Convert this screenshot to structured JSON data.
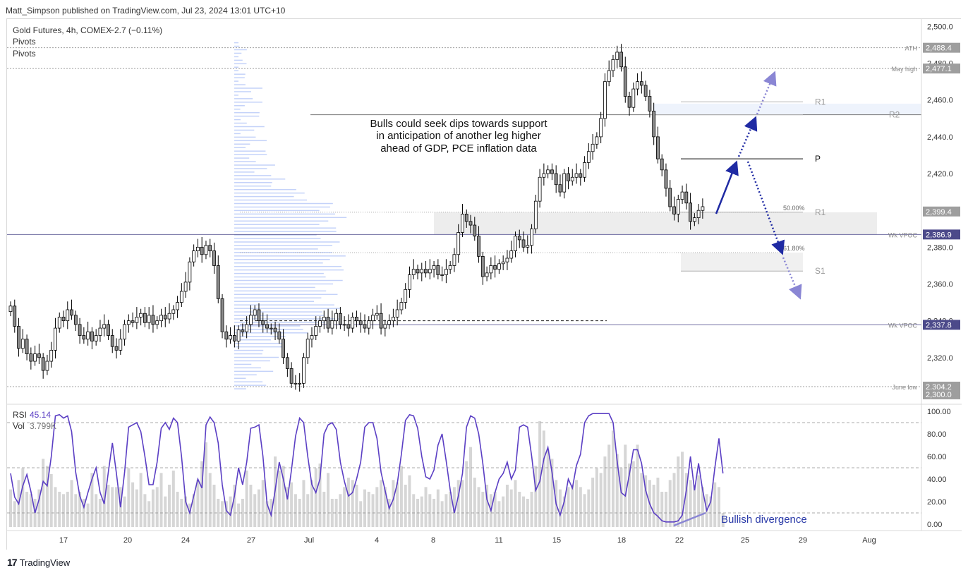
{
  "header": {
    "publisher": "Matt_Simpson published on TradingView.com, Jul 23, 2024 13:01 UTC+10"
  },
  "legend": {
    "symbol": "Gold Futures, 4h, COMEX",
    "change": "−2.7 (−0.11%)",
    "ind1": "Pivots",
    "ind2": "Pivots"
  },
  "annotation": {
    "line1": "Bulls could seek dips towards support",
    "line2": "in anticipation of another leg higher",
    "line3": "ahead of GDP, PCE inflation data"
  },
  "divergence_label": "Bullish divergence",
  "rsi_legend": {
    "name": "RSI",
    "value": "45.14",
    "vol_name": "Vol",
    "vol_value": "3.799K"
  },
  "footer": {
    "brand": "TradingView"
  },
  "colors": {
    "bull": "#ffffff",
    "bear": "#8c8c8c",
    "candle_border": "#000000",
    "profile": "#6c8ef0",
    "rsi": "#5b3fc4",
    "accent": "#1f2aa3",
    "pivot_gray": "#b0b0b0",
    "wkvpoc": "#4c4a8a"
  },
  "chart_data": [
    {
      "type": "candlestick",
      "title": "Gold Futures, 4h, COMEX",
      "y_axis_ticks": [
        2500,
        2480,
        2460,
        2440,
        2420,
        2400,
        2380,
        2360,
        2340,
        2320,
        2300
      ],
      "ylim": [
        2295,
        2504
      ],
      "x_tick_labels": [
        "17",
        "20",
        "24",
        "27",
        "Jul",
        "4",
        "8",
        "11",
        "15",
        "18",
        "22",
        "25",
        "29",
        "Aug"
      ],
      "price_labels": [
        {
          "value": "2,488.4",
          "price": 2488.4,
          "name": "ATH"
        },
        {
          "value": "2,477.1",
          "price": 2477.1,
          "name": "May high"
        },
        {
          "value": "2,399.4",
          "price": 2399.4,
          "name": ""
        },
        {
          "value": "2,386.9",
          "price": 2386.9,
          "name": "Wk VPOC"
        },
        {
          "value": "2,337.8",
          "price": 2337.8,
          "name": "Wk VPOC"
        },
        {
          "value": "2,304.2",
          "price": 2304.2,
          "name": "June low"
        },
        {
          "value": "2,300.0",
          "price": 2300.0,
          "name": ""
        }
      ],
      "pivot_levels": [
        {
          "label": "R1",
          "price": 2459
        },
        {
          "label": "R2",
          "price": 2452
        },
        {
          "label": "P",
          "price": 2428
        },
        {
          "label": "R1",
          "price": 2399
        },
        {
          "label": "S1",
          "price": 2367
        }
      ],
      "fib_levels": [
        {
          "label": "50.00%",
          "price": 2399
        },
        {
          "label": "61.80%",
          "price": 2377
        }
      ],
      "closes": [
        2348,
        2337,
        2325,
        2330,
        2322,
        2318,
        2322,
        2320,
        2313,
        2318,
        2324,
        2336,
        2342,
        2340,
        2346,
        2343,
        2338,
        2332,
        2330,
        2334,
        2329,
        2332,
        2336,
        2338,
        2332,
        2326,
        2324,
        2330,
        2338,
        2340,
        2339,
        2342,
        2344,
        2339,
        2343,
        2338,
        2340,
        2343,
        2341,
        2344,
        2346,
        2350,
        2356,
        2361,
        2372,
        2378,
        2380,
        2376,
        2381,
        2378,
        2370,
        2352,
        2334,
        2330,
        2332,
        2329,
        2335,
        2334,
        2338,
        2343,
        2346,
        2340,
        2338,
        2336,
        2336,
        2334,
        2330,
        2320,
        2314,
        2306,
        2306,
        2306,
        2320,
        2330,
        2332,
        2337,
        2340,
        2342,
        2336,
        2340,
        2344,
        2338,
        2338,
        2336,
        2342,
        2340,
        2338,
        2336,
        2340,
        2343,
        2344,
        2336,
        2338,
        2340,
        2342,
        2346,
        2350,
        2357,
        2365,
        2368,
        2366,
        2368,
        2366,
        2368,
        2370,
        2365,
        2365,
        2368,
        2370,
        2376,
        2388,
        2398,
        2394,
        2392,
        2386,
        2375,
        2364,
        2366,
        2370,
        2368,
        2371,
        2372,
        2374,
        2378,
        2386,
        2384,
        2380,
        2381,
        2390,
        2405,
        2418,
        2420,
        2422,
        2420,
        2414,
        2410,
        2420,
        2416,
        2418,
        2420,
        2418,
        2426,
        2432,
        2436,
        2440,
        2450,
        2470,
        2476,
        2482,
        2486,
        2478,
        2462,
        2456,
        2466,
        2470,
        2468,
        2462,
        2454,
        2440,
        2428,
        2422,
        2412,
        2402,
        2398,
        2406,
        2410,
        2404,
        2394,
        2396,
        2400,
        2402
      ]
    },
    {
      "type": "line",
      "name": "RSI",
      "series": [
        {
          "name": "RSI",
          "values": [
            45,
            24,
            18,
            34,
            44,
            29,
            10,
            22,
            38,
            34,
            60,
            96,
            97,
            94,
            96,
            82,
            46,
            25,
            15,
            28,
            40,
            50,
            28,
            18,
            46,
            72,
            45,
            15,
            46,
            86,
            88,
            90,
            82,
            60,
            35,
            35,
            55,
            85,
            90,
            84,
            94,
            90,
            60,
            20,
            10,
            25,
            40,
            32,
            88,
            95,
            90,
            72,
            35,
            12,
            8,
            25,
            50,
            35,
            55,
            85,
            86,
            88,
            60,
            18,
            8,
            30,
            55,
            40,
            22,
            48,
            78,
            94,
            90,
            60,
            35,
            28,
            40,
            80,
            88,
            90,
            84,
            55,
            38,
            25,
            28,
            40,
            55,
            86,
            90,
            90,
            76,
            46,
            30,
            14,
            22,
            36,
            62,
            92,
            97,
            96,
            85,
            60,
            42,
            40,
            48,
            70,
            80,
            56,
            30,
            10,
            25,
            45,
            86,
            96,
            94,
            80,
            54,
            22,
            12,
            28,
            40,
            45,
            55,
            40,
            48,
            86,
            88,
            86,
            60,
            30,
            38,
            58,
            68,
            46,
            18,
            8,
            20,
            40,
            32,
            52,
            62,
            90,
            96,
            98,
            98,
            98,
            98,
            98,
            90,
            56,
            28,
            25,
            44,
            66,
            66,
            54,
            30,
            18,
            10,
            7,
            3,
            2,
            2,
            2,
            3,
            8,
            30,
            60,
            30,
            54,
            30,
            12,
            20,
            50,
            76,
            45
          ]
        }
      ],
      "ylim": [
        0,
        100
      ],
      "y_ticks": [
        100,
        80,
        60,
        40,
        20,
        0
      ],
      "y_tick_labels": [
        "100.00",
        "80.00",
        "60.00",
        "40.00",
        "20.00",
        "0.00"
      ],
      "levels": [
        90,
        50,
        10
      ]
    },
    {
      "type": "bar",
      "name": "Vol",
      "values": [
        32,
        22,
        40,
        50,
        30,
        28,
        24,
        32,
        58,
        52,
        45,
        34,
        30,
        28,
        30,
        40,
        28,
        30,
        24,
        20,
        46,
        28,
        24,
        52,
        36,
        34,
        34,
        34,
        26,
        50,
        38,
        32,
        46,
        28,
        22,
        32,
        34,
        46,
        26,
        36,
        48,
        30,
        24,
        26,
        20,
        28,
        40,
        56,
        72,
        46,
        36,
        24,
        22,
        22,
        26,
        36,
        20,
        24,
        48,
        36,
        28,
        32,
        40,
        22,
        24,
        60,
        48,
        52,
        34,
        38,
        28,
        24,
        40,
        28,
        40,
        50,
        54,
        30,
        46,
        24,
        24,
        28,
        34,
        42,
        40,
        36,
        22,
        32,
        30,
        28,
        34,
        40,
        34,
        24,
        40,
        38,
        52,
        36,
        44,
        28,
        24,
        26,
        34,
        28,
        24,
        32,
        22,
        28,
        30,
        34,
        40,
        40,
        56,
        68,
        42,
        34,
        30,
        36,
        28,
        30,
        22,
        26,
        36,
        32,
        40,
        30,
        26,
        24,
        30,
        52,
        90,
        82,
        66,
        58,
        40,
        32,
        26,
        34,
        36,
        40,
        34,
        28,
        32,
        42,
        50,
        46,
        60,
        70,
        82,
        62,
        50,
        70,
        54,
        56,
        70,
        46,
        44,
        40,
        36,
        42,
        30,
        30,
        40,
        46,
        60,
        64,
        46,
        40,
        36,
        44,
        34,
        28,
        26,
        38,
        34,
        12
      ]
    }
  ]
}
